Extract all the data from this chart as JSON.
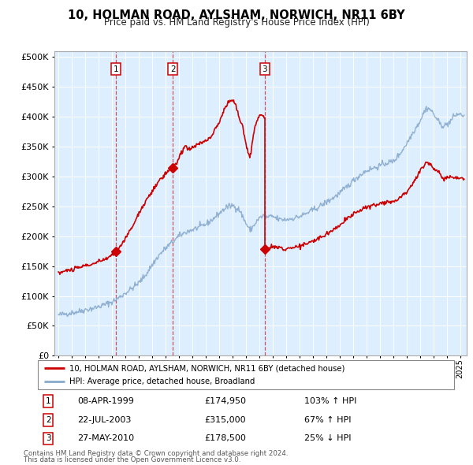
{
  "title": "10, HOLMAN ROAD, AYLSHAM, NORWICH, NR11 6BY",
  "subtitle": "Price paid vs. HM Land Registry's House Price Index (HPI)",
  "legend_property": "10, HOLMAN ROAD, AYLSHAM, NORWICH, NR11 6BY (detached house)",
  "legend_hpi": "HPI: Average price, detached house, Broadland",
  "footer1": "Contains HM Land Registry data © Crown copyright and database right 2024.",
  "footer2": "This data is licensed under the Open Government Licence v3.0.",
  "transactions": [
    {
      "num": 1,
      "date": "08-APR-1999",
      "price": 174950,
      "pct": "103%",
      "dir": "↑"
    },
    {
      "num": 2,
      "date": "22-JUL-2003",
      "price": 315000,
      "pct": "67%",
      "dir": "↑"
    },
    {
      "num": 3,
      "date": "27-MAY-2010",
      "price": 178500,
      "pct": "25%",
      "dir": "↓"
    }
  ],
  "transaction_years": [
    1999.27,
    2003.55,
    2010.41
  ],
  "transaction_prices": [
    174950,
    315000,
    178500
  ],
  "property_color": "#cc0000",
  "hpi_color": "#88aacc",
  "background_color": "#ddeeff",
  "grid_color": "#ffffff",
  "ylim": [
    0,
    510000
  ],
  "yticks": [
    0,
    50000,
    100000,
    150000,
    200000,
    250000,
    300000,
    350000,
    400000,
    450000,
    500000
  ],
  "xlim_start": 1994.7,
  "xlim_end": 2025.5,
  "hpi_anchors": [
    [
      1995.0,
      68000
    ],
    [
      1995.5,
      70000
    ],
    [
      1996.0,
      72000
    ],
    [
      1996.5,
      74000
    ],
    [
      1997.0,
      77000
    ],
    [
      1997.5,
      79000
    ],
    [
      1998.0,
      82000
    ],
    [
      1998.5,
      86000
    ],
    [
      1999.0,
      90000
    ],
    [
      1999.5,
      97000
    ],
    [
      2000.0,
      105000
    ],
    [
      2000.5,
      113000
    ],
    [
      2001.0,
      122000
    ],
    [
      2001.5,
      135000
    ],
    [
      2002.0,
      152000
    ],
    [
      2002.5,
      168000
    ],
    [
      2003.0,
      180000
    ],
    [
      2003.5,
      190000
    ],
    [
      2004.0,
      200000
    ],
    [
      2004.5,
      207000
    ],
    [
      2005.0,
      211000
    ],
    [
      2005.5,
      215000
    ],
    [
      2006.0,
      220000
    ],
    [
      2006.5,
      228000
    ],
    [
      2007.0,
      238000
    ],
    [
      2007.5,
      248000
    ],
    [
      2008.0,
      252000
    ],
    [
      2008.5,
      245000
    ],
    [
      2009.0,
      222000
    ],
    [
      2009.3,
      210000
    ],
    [
      2009.5,
      215000
    ],
    [
      2009.8,
      225000
    ],
    [
      2010.0,
      230000
    ],
    [
      2010.3,
      235000
    ],
    [
      2010.5,
      232000
    ],
    [
      2011.0,
      233000
    ],
    [
      2011.5,
      228000
    ],
    [
      2012.0,
      228000
    ],
    [
      2012.5,
      230000
    ],
    [
      2013.0,
      233000
    ],
    [
      2013.5,
      238000
    ],
    [
      2014.0,
      244000
    ],
    [
      2014.5,
      250000
    ],
    [
      2015.0,
      257000
    ],
    [
      2015.5,
      264000
    ],
    [
      2016.0,
      272000
    ],
    [
      2016.5,
      282000
    ],
    [
      2017.0,
      293000
    ],
    [
      2017.5,
      302000
    ],
    [
      2018.0,
      310000
    ],
    [
      2018.5,
      314000
    ],
    [
      2019.0,
      318000
    ],
    [
      2019.5,
      323000
    ],
    [
      2020.0,
      325000
    ],
    [
      2020.5,
      338000
    ],
    [
      2021.0,
      355000
    ],
    [
      2021.5,
      375000
    ],
    [
      2022.0,
      393000
    ],
    [
      2022.3,
      408000
    ],
    [
      2022.5,
      415000
    ],
    [
      2022.8,
      412000
    ],
    [
      2023.0,
      405000
    ],
    [
      2023.3,
      395000
    ],
    [
      2023.5,
      388000
    ],
    [
      2023.8,
      385000
    ],
    [
      2024.0,
      387000
    ],
    [
      2024.3,
      393000
    ],
    [
      2024.5,
      400000
    ],
    [
      2024.8,
      405000
    ],
    [
      2025.3,
      402000
    ]
  ],
  "prop_seg1_anchors": [
    [
      1995.0,
      138000
    ],
    [
      1995.5,
      142000
    ],
    [
      1996.0,
      144000
    ],
    [
      1996.5,
      147000
    ],
    [
      1997.0,
      151000
    ],
    [
      1997.5,
      153000
    ],
    [
      1998.0,
      157000
    ],
    [
      1998.5,
      162000
    ],
    [
      1999.0,
      168000
    ],
    [
      1999.27,
      174950
    ]
  ],
  "prop_seg2_anchors": [
    [
      1999.27,
      174950
    ],
    [
      1999.5,
      180000
    ],
    [
      2000.0,
      196000
    ],
    [
      2000.5,
      215000
    ],
    [
      2001.0,
      238000
    ],
    [
      2001.5,
      258000
    ],
    [
      2002.0,
      275000
    ],
    [
      2002.5,
      292000
    ],
    [
      2003.0,
      305000
    ],
    [
      2003.3,
      312000
    ],
    [
      2003.55,
      315000
    ],
    [
      2003.8,
      322000
    ],
    [
      2004.0,
      330000
    ],
    [
      2004.3,
      345000
    ],
    [
      2004.5,
      352000
    ],
    [
      2004.7,
      345000
    ],
    [
      2005.0,
      348000
    ],
    [
      2005.3,
      352000
    ],
    [
      2005.5,
      356000
    ],
    [
      2005.8,
      358000
    ],
    [
      2006.0,
      360000
    ],
    [
      2006.3,
      365000
    ],
    [
      2006.5,
      370000
    ],
    [
      2007.0,
      390000
    ],
    [
      2007.3,
      408000
    ],
    [
      2007.5,
      418000
    ],
    [
      2007.7,
      425000
    ],
    [
      2007.9,
      430000
    ],
    [
      2008.1,
      425000
    ],
    [
      2008.3,
      415000
    ],
    [
      2008.5,
      400000
    ],
    [
      2008.8,
      380000
    ],
    [
      2009.0,
      355000
    ],
    [
      2009.2,
      340000
    ],
    [
      2009.3,
      330000
    ],
    [
      2009.4,
      345000
    ],
    [
      2009.5,
      360000
    ],
    [
      2009.6,
      375000
    ],
    [
      2009.7,
      385000
    ],
    [
      2009.8,
      393000
    ],
    [
      2010.0,
      400000
    ],
    [
      2010.2,
      405000
    ],
    [
      2010.41,
      398000
    ]
  ],
  "prop_seg3_anchors": [
    [
      2010.41,
      178500
    ],
    [
      2010.6,
      180000
    ],
    [
      2011.0,
      182000
    ],
    [
      2011.5,
      181000
    ],
    [
      2012.0,
      180000
    ],
    [
      2012.5,
      181500
    ],
    [
      2013.0,
      183000
    ],
    [
      2013.5,
      187000
    ],
    [
      2014.0,
      192000
    ],
    [
      2014.5,
      197000
    ],
    [
      2015.0,
      204000
    ],
    [
      2015.5,
      211000
    ],
    [
      2016.0,
      219000
    ],
    [
      2016.5,
      228000
    ],
    [
      2017.0,
      237000
    ],
    [
      2017.5,
      244000
    ],
    [
      2018.0,
      248000
    ],
    [
      2018.5,
      252000
    ],
    [
      2019.0,
      255000
    ],
    [
      2019.5,
      258000
    ],
    [
      2020.0,
      258000
    ],
    [
      2020.5,
      265000
    ],
    [
      2021.0,
      275000
    ],
    [
      2021.5,
      290000
    ],
    [
      2022.0,
      308000
    ],
    [
      2022.3,
      320000
    ],
    [
      2022.5,
      325000
    ],
    [
      2022.7,
      322000
    ],
    [
      2023.0,
      315000
    ],
    [
      2023.3,
      308000
    ],
    [
      2023.5,
      303000
    ],
    [
      2023.7,
      298000
    ],
    [
      2024.0,
      298000
    ],
    [
      2024.3,
      300000
    ],
    [
      2024.5,
      300000
    ],
    [
      2024.8,
      298000
    ],
    [
      2025.3,
      297000
    ]
  ]
}
